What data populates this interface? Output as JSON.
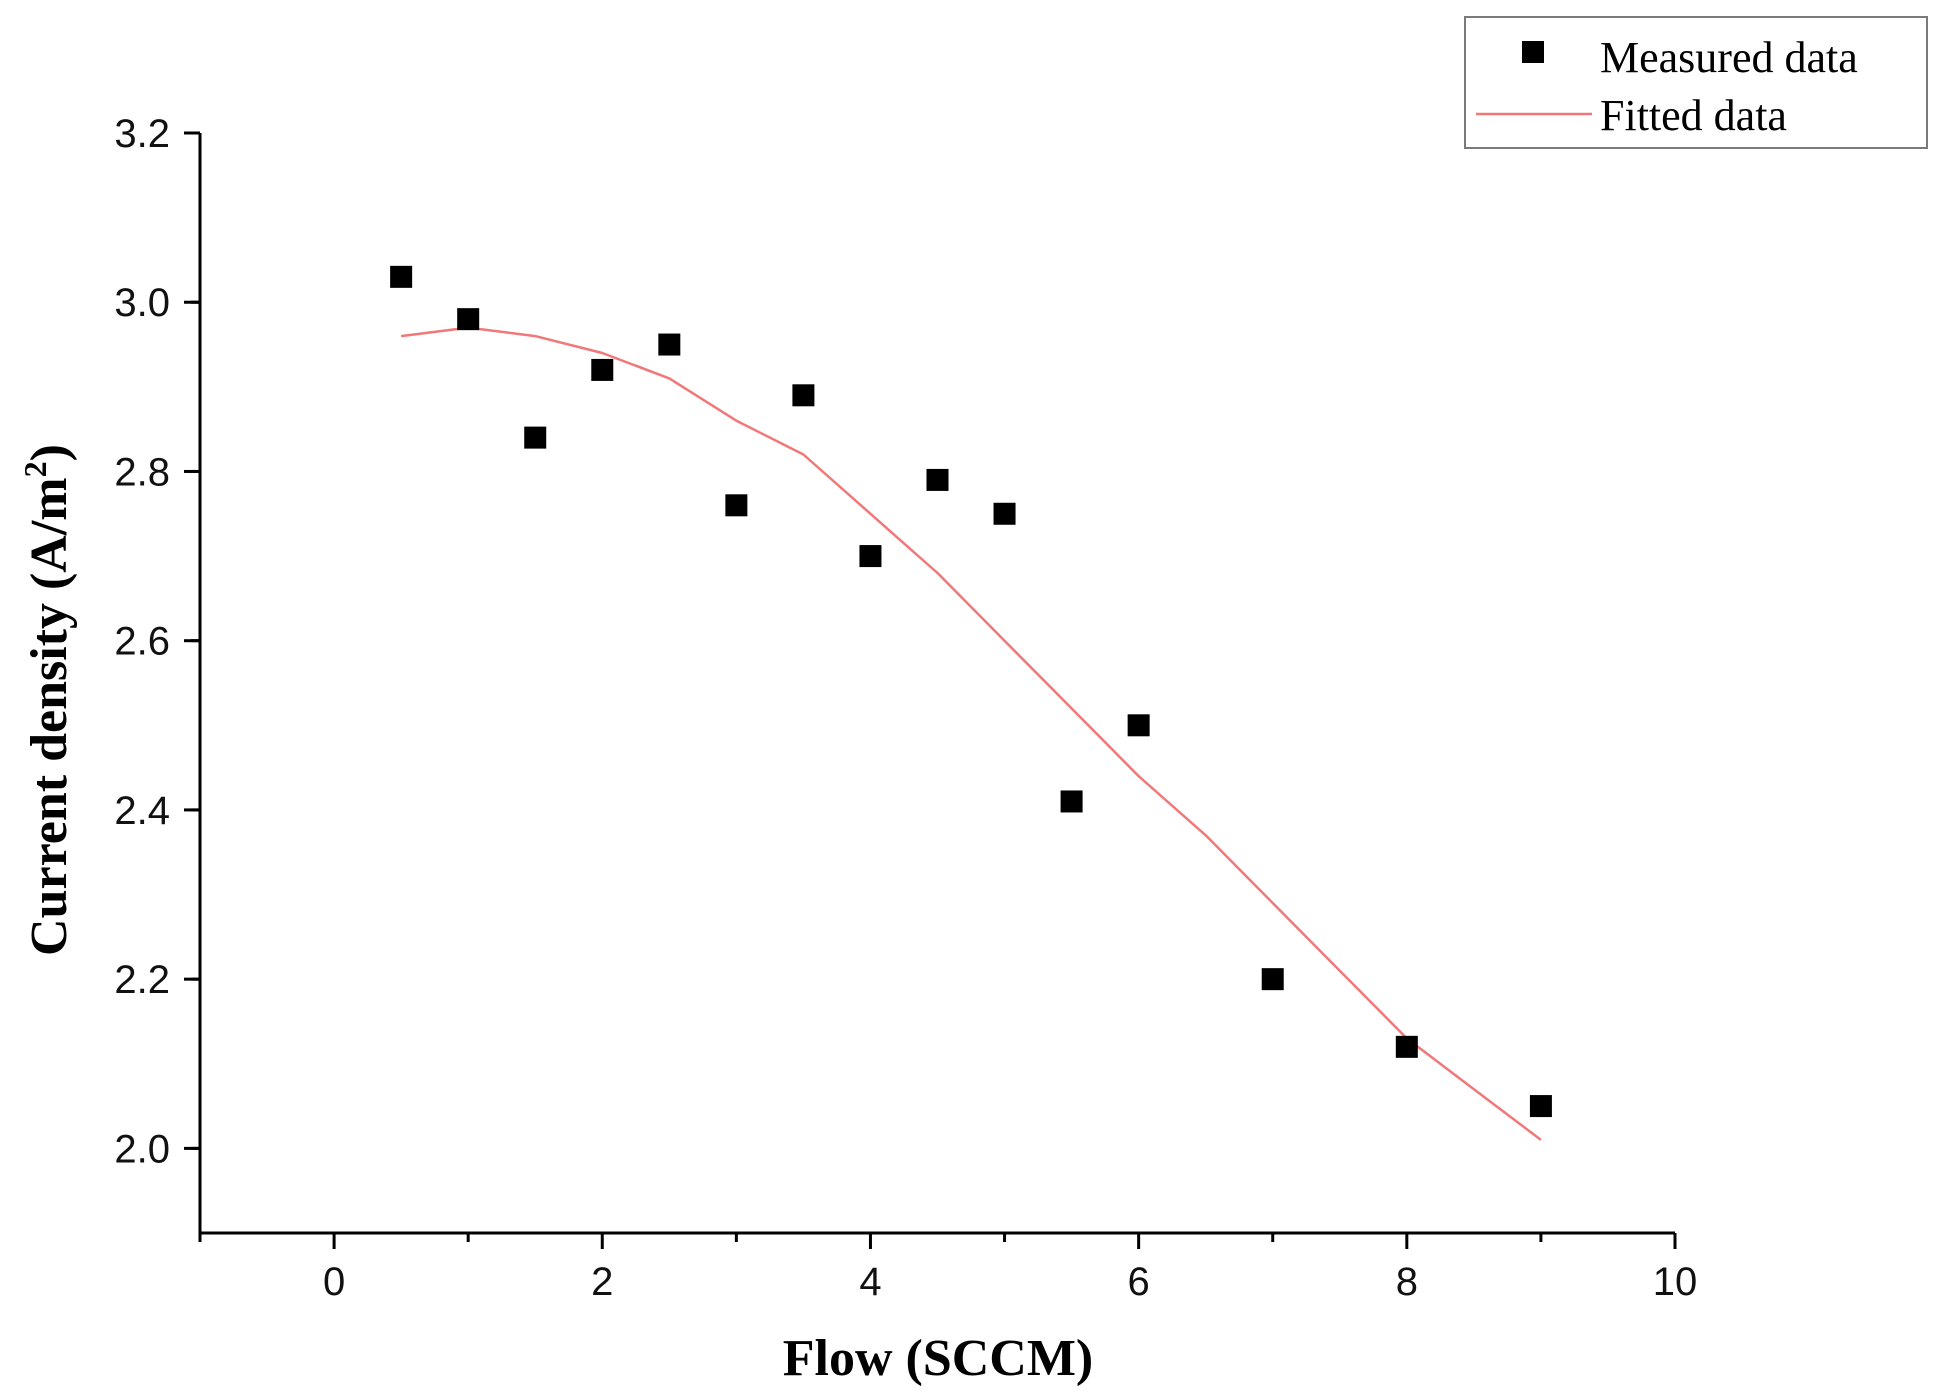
{
  "chart_data": {
    "type": "scatter",
    "title": "",
    "xlabel": "Flow (SCCM)",
    "ylabel": "Current density (A/m",
    "ylabel_superscript": "2",
    "ylabel_suffix": ")",
    "xlim": [
      -1,
      10
    ],
    "ylim": [
      1.9,
      3.2
    ],
    "x_ticks": [
      0,
      2,
      4,
      6,
      8,
      10
    ],
    "x_tick_labels": [
      "0",
      "2",
      "4",
      "6",
      "8",
      "10"
    ],
    "y_ticks": [
      2.0,
      2.2,
      2.4,
      2.6,
      2.8,
      3.0,
      3.2
    ],
    "y_tick_labels": [
      "2.0",
      "2.2",
      "2.4",
      "2.6",
      "2.8",
      "3.0",
      "3.2"
    ],
    "grid": false,
    "legend_position": "top-right",
    "series": [
      {
        "name": "Measured data",
        "kind": "scatter",
        "marker": "square",
        "color": "#000000",
        "x": [
          0.5,
          1.0,
          1.5,
          2.0,
          2.5,
          3.0,
          3.5,
          4.0,
          4.5,
          5.0,
          5.5,
          6.0,
          7.0,
          8.0,
          9.0
        ],
        "y": [
          3.03,
          2.98,
          2.84,
          2.92,
          2.95,
          2.76,
          2.89,
          2.7,
          2.79,
          2.75,
          2.41,
          2.5,
          2.2,
          2.12,
          2.05
        ]
      },
      {
        "name": "Fitted data",
        "kind": "line",
        "color": "#f07878",
        "x": [
          0.5,
          1.0,
          1.5,
          2.0,
          2.5,
          3.0,
          3.5,
          4.0,
          4.5,
          5.0,
          5.5,
          6.0,
          6.5,
          7.0,
          7.5,
          8.0,
          8.5,
          9.0
        ],
        "y": [
          2.96,
          2.97,
          2.96,
          2.94,
          2.91,
          2.86,
          2.82,
          2.75,
          2.68,
          2.6,
          2.52,
          2.44,
          2.37,
          2.29,
          2.21,
          2.13,
          2.07,
          2.01
        ]
      }
    ]
  }
}
